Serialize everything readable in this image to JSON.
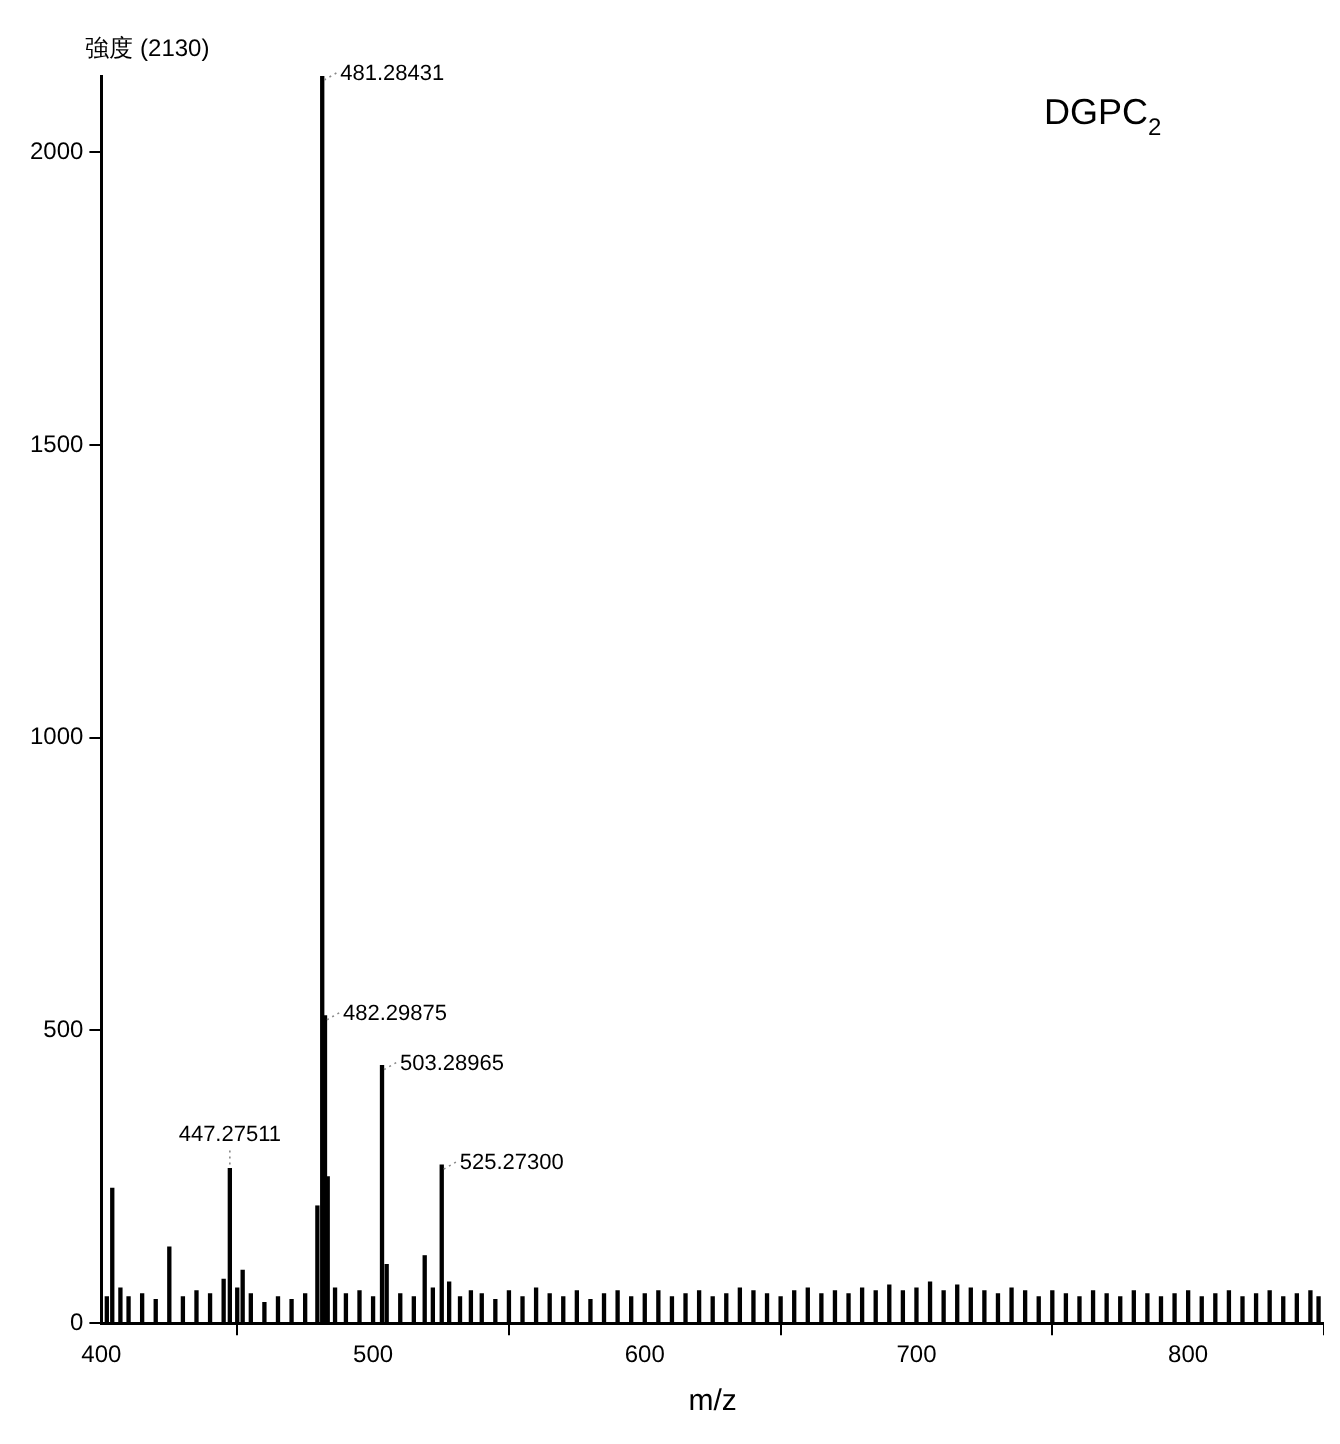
{
  "chart_data": {
    "type": "bar",
    "ylabel": "強度 (2130)",
    "xlabel": "m/z",
    "color": "#000000",
    "grid": false,
    "legend": false,
    "xlim": [
      400,
      850
    ],
    "xticks": [
      400,
      500,
      600,
      700,
      800
    ],
    "ylim": [
      0,
      2130
    ],
    "yticks": [
      0,
      500,
      1000,
      1500,
      2000
    ],
    "x": [
      402,
      404,
      407,
      410,
      415,
      420,
      425,
      430,
      435,
      440,
      445,
      447.28,
      450,
      452,
      455,
      460,
      465,
      470,
      475,
      479.5,
      480.5,
      481.28,
      482.3,
      483.3,
      486,
      490,
      495,
      500,
      503.29,
      505,
      510,
      515,
      519,
      522,
      525.27,
      528,
      532,
      536,
      540,
      545,
      550,
      555,
      560,
      565,
      570,
      575,
      580,
      585,
      590,
      595,
      600,
      605,
      610,
      615,
      620,
      625,
      630,
      635,
      640,
      645,
      650,
      655,
      660,
      665,
      670,
      675,
      680,
      685,
      690,
      695,
      700,
      705,
      710,
      715,
      720,
      725,
      730,
      735,
      740,
      745,
      750,
      755,
      760,
      765,
      770,
      775,
      780,
      785,
      790,
      795,
      800,
      805,
      810,
      815,
      820,
      825,
      830,
      835,
      840,
      845,
      848
    ],
    "values": [
      45,
      230,
      60,
      45,
      50,
      40,
      130,
      45,
      55,
      50,
      75,
      264,
      60,
      90,
      50,
      35,
      45,
      40,
      50,
      200,
      null,
      2130,
      525,
      250,
      60,
      50,
      55,
      45,
      440,
      100,
      50,
      45,
      115,
      60,
      270,
      70,
      45,
      55,
      50,
      40,
      55,
      45,
      60,
      50,
      45,
      55,
      40,
      50,
      55,
      45,
      50,
      55,
      45,
      50,
      55,
      45,
      50,
      60,
      55,
      50,
      45,
      55,
      60,
      50,
      55,
      50,
      60,
      55,
      65,
      55,
      60,
      70,
      55,
      65,
      60,
      55,
      50,
      60,
      55,
      45,
      55,
      50,
      45,
      55,
      50,
      45,
      55,
      50,
      45,
      50,
      55,
      45,
      50,
      55,
      45,
      50,
      55,
      45,
      50,
      55,
      45
    ],
    "annotations": [
      {
        "text": "481.28431",
        "x": 481.28,
        "y": 2130
      },
      {
        "text": "482.29875",
        "x": 482.3,
        "y": 525
      },
      {
        "text": "503.28965",
        "x": 503.29,
        "y": 440
      },
      {
        "text": "447.27511",
        "x": 447.28,
        "y": 264
      },
      {
        "text": "525.27300",
        "x": 525.27,
        "y": 270
      },
      "DGPC$_{2}$"
    ]
  }
}
